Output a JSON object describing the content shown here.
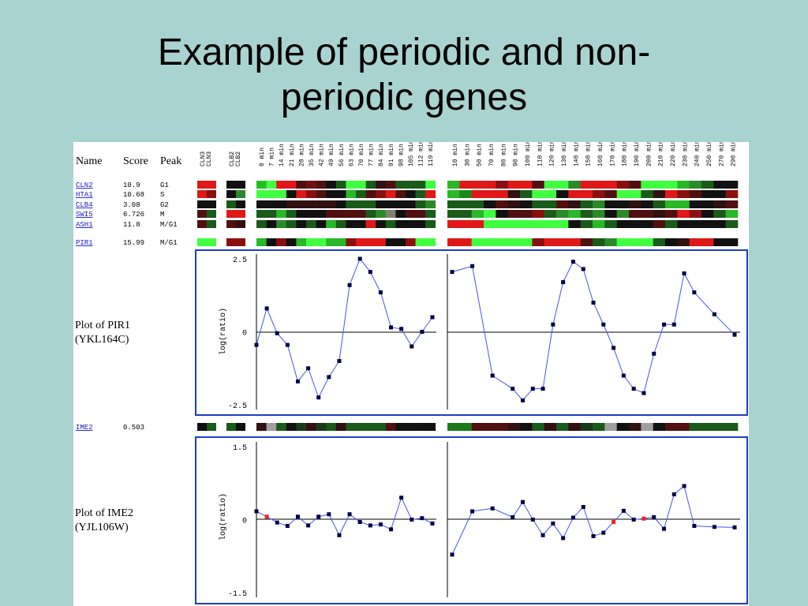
{
  "slide": {
    "title_line1": "Example of periodic and non-",
    "title_line2": "periodic genes"
  },
  "table_header": {
    "name": "Name",
    "score": "Score",
    "peak": "Peak"
  },
  "ref_columns": {
    "cln": [
      "CLN3",
      "CLN3"
    ],
    "clb": [
      "CLB2",
      "CLB2"
    ]
  },
  "timepoints_a": [
    "0 min",
    "7 min",
    "14 min",
    "21 min",
    "28 min",
    "35 min",
    "42 min",
    "49 min",
    "56 min",
    "63 min",
    "70 min",
    "77 min",
    "84 min",
    "91 min",
    "98 min",
    "105 min",
    "112 min",
    "119 min"
  ],
  "timepoints_b": [
    "10 min",
    "30 min",
    "50 min",
    "70 min",
    "80 min",
    "90 min",
    "100 min",
    "110 min",
    "120 min",
    "130 min",
    "140 min",
    "150 min",
    "160 min",
    "170 min",
    "180 min",
    "190 min",
    "200 min",
    "210 min",
    "220 min",
    "230 min",
    "240 min",
    "250 min",
    "270 min",
    "290 min"
  ],
  "genes": [
    {
      "name": "CLN2",
      "score": "10.9",
      "peak": "G1",
      "ref": [
        "#e01818",
        "#e01818",
        "#111111",
        "#111111"
      ],
      "a": [
        "#20c020",
        "#40ff40",
        "#e01818",
        "#e01818",
        "#501010",
        "#701010",
        "#501010",
        "#111111",
        "#1a5a1a",
        "#40ff40",
        "#40ff40",
        "#1a5a1a",
        "#301010",
        "#501010",
        "#1a5a1a",
        "#1a5a1a",
        "#1a5a1a",
        "#40ff40"
      ],
      "b": [
        "#28b828",
        "#e01818",
        "#e01818",
        "#e01818",
        "#8a1010",
        "#e01818",
        "#e01818",
        "#501010",
        "#40ff40",
        "#40ff40",
        "#2a8a2a",
        "#e01818",
        "#e01818",
        "#e01818",
        "#8a1010",
        "#501010",
        "#40ff40",
        "#40ff40",
        "#40ff40",
        "#28b828",
        "#2a8a2a",
        "#1a5a1a",
        "#111111",
        "#111111"
      ]
    },
    {
      "name": "HTA1",
      "score": "10.68",
      "peak": "S",
      "ref": [
        "#e01818",
        "#8a1010",
        "#111111",
        "#2a8a2a"
      ],
      "a": [
        "#40ff40",
        "#40ff40",
        "#40ff40",
        "#111111",
        "#e01818",
        "#8a1010",
        "#501010",
        "#111111",
        "#111111",
        "#28b828",
        "#1a5a1a",
        "#501010",
        "#8a1010",
        "#e01818",
        "#501010",
        "#111111",
        "#1a5a1a",
        "#e01818"
      ],
      "b": [
        "#28b828",
        "#1a8a1a",
        "#e01818",
        "#e01818",
        "#e01818",
        "#301010",
        "#1a5a1a",
        "#40ff40",
        "#40ff40",
        "#111111",
        "#e01818",
        "#e01818",
        "#8a1010",
        "#501010",
        "#40ff40",
        "#40ff40",
        "#1a5a1a",
        "#301010",
        "#e01818",
        "#8a1010",
        "#501010",
        "#111111",
        "#111111",
        "#8a1010"
      ]
    },
    {
      "name": "CLB4",
      "score": "3.08",
      "peak": "G2",
      "ref": [
        "#111111",
        "#111111",
        "#1a5a1a",
        "#111111"
      ],
      "a": [
        "#111111",
        "#111111",
        "#111111",
        "#301010",
        "#301010",
        "#301010",
        "#301010",
        "#301010",
        "#111111",
        "#1a5a1a",
        "#1a5a1a",
        "#1a5a1a",
        "#111111",
        "#111111",
        "#111111",
        "#111111",
        "#1a5a1a",
        "#2a8a2a"
      ],
      "b": [
        "#1a5a1a",
        "#1a5a1a",
        "#1a5a1a",
        "#111111",
        "#501010",
        "#301010",
        "#111111",
        "#1a5a1a",
        "#1a5a1a",
        "#501010",
        "#301010",
        "#1a5a1a",
        "#2a8a2a",
        "#111111",
        "#111111",
        "#301010",
        "#111111",
        "#1a5a1a",
        "#28b828",
        "#28b828",
        "#111111",
        "#111111",
        "#301010",
        "#501010"
      ]
    },
    {
      "name": "SWI5",
      "score": "6.726",
      "peak": "M",
      "ref": [
        "#501010",
        "#1a5a1a",
        "#e01818",
        "#e01818"
      ],
      "a": [
        "#1a5a1a",
        "#1a5a1a",
        "#28b828",
        "#1a5a1a",
        "#111111",
        "#111111",
        "#111111",
        "#501010",
        "#501010",
        "#501010",
        "#501010",
        "#1a5a1a",
        "#2a8a2a",
        "#808070",
        "#111111",
        "#501010",
        "#501010",
        "#1a5a1a"
      ],
      "b": [
        "#1a5a1a",
        "#1a5a1a",
        "#28b828",
        "#40ff40",
        "#111111",
        "#501010",
        "#501010",
        "#8a1010",
        "#1a5a1a",
        "#2a8a2a",
        "#28b828",
        "#1a5a1a",
        "#2a8a2a",
        "#111111",
        "#2a8a2a",
        "#501010",
        "#501010",
        "#301010",
        "#501010",
        "#e01818",
        "#8a1010",
        "#111111",
        "#1a5a1a",
        "#28b828"
      ]
    },
    {
      "name": "ASH1",
      "score": "11.8",
      "peak": "M/G1",
      "ref": [
        "#501010",
        "#1a5a1a",
        "#501010",
        "#301010"
      ],
      "a": [
        "#1a5a1a",
        "#111111",
        "#2a8a2a",
        "#1a5a1a",
        "#111111",
        "#1a5a1a",
        "#111111",
        "#28b828",
        "#1a5a1a",
        "#111111",
        "#111111",
        "#e01818",
        "#111111",
        "#1a5a1a",
        "#111111",
        "#111111",
        "#111111",
        "#1a5a1a"
      ],
      "b": [
        "#e01818",
        "#e01818",
        "#e01818",
        "#40ff40",
        "#40ff40",
        "#40ff40",
        "#40ff40",
        "#40ff40",
        "#40ff40",
        "#40ff40",
        "#111111",
        "#1a5a1a",
        "#28b828",
        "#1a5a1a",
        "#111111",
        "#111111",
        "#111111",
        "#501010",
        "#1a5a1a",
        "#111111",
        "#111111",
        "#111111",
        "#111111",
        "#1a5a1a"
      ]
    },
    {
      "name": "PIR1",
      "score": "15.99",
      "peak": "M/G1",
      "ref": [
        "#40ff40",
        "#40ff40",
        "#8a1010",
        "#8a1010"
      ],
      "a": [
        "#28b828",
        "#111111",
        "#8a1010",
        "#111111",
        "#28b828",
        "#40ff40",
        "#40ff40",
        "#28b828",
        "#28b828",
        "#8a1010",
        "#e01818",
        "#e01818",
        "#e01818",
        "#111111",
        "#111111",
        "#8a1010",
        "#40ff40",
        "#40ff40"
      ],
      "b": [
        "#e01818",
        "#e01818",
        "#40ff40",
        "#40ff40",
        "#40ff40",
        "#40ff40",
        "#40ff40",
        "#8a1010",
        "#e01818",
        "#e01818",
        "#e01818",
        "#501010",
        "#1a5a1a",
        "#2a8a2a",
        "#40ff40",
        "#40ff40",
        "#40ff40",
        "#1a5a1a",
        "#111111",
        "#301010",
        "#e01818",
        "#e01818",
        "#111111",
        "#111111"
      ]
    },
    {
      "name": "IME2",
      "score": "0.503",
      "peak": "",
      "ref": [
        "#111111",
        "#1a5a1a",
        "#1a5a1a",
        "#111111"
      ],
      "a": [
        "#301010",
        "#a0a0a0",
        "#1a5a1a",
        "#111111",
        "#1a3a1a",
        "#301010",
        "#1a3a1a",
        "#1a5a1a",
        "#301010",
        "#1a5a1a",
        "#1a5a1a",
        "#1a5a1a",
        "#1a5a1a",
        "#501010",
        "#111111",
        "#111111",
        "#111111",
        "#111111"
      ],
      "b": [
        "#1a7a1a",
        "#1a7a1a",
        "#501010",
        "#501010",
        "#501010",
        "#301010",
        "#111111",
        "#1a5a1a",
        "#301010",
        "#1a5a1a",
        "#301010",
        "#1a3a1a",
        "#1a5a1a",
        "#a0a0a0",
        "#111111",
        "#301010",
        "#a0a0a0",
        "#111111",
        "#501010",
        "#501010",
        "#1a5a1a",
        "#1a5a1a",
        "#1a5a1a",
        "#1a5a1a"
      ]
    }
  ],
  "chart_data": [
    {
      "type": "line",
      "title": "Plot of PIR1",
      "subtitle": "(YKL164C)",
      "ylabel": "log(ratio)",
      "ylim": [
        -2.5,
        2.5
      ],
      "yticks": [
        "2.5",
        "0",
        "-2.5"
      ],
      "grid": false,
      "series": [
        {
          "x": [
            0,
            7,
            14,
            21,
            28,
            35,
            42,
            49,
            56,
            63,
            70,
            77,
            84,
            91,
            98,
            105,
            112,
            119
          ],
          "values": [
            -0.45,
            0.8,
            -0.05,
            -0.45,
            -1.7,
            -1.25,
            -2.25,
            -1.55,
            -1.0,
            1.6,
            2.5,
            2.05,
            1.35,
            0.15,
            0.1,
            -0.5,
            0.0,
            0.5
          ]
        },
        {
          "x": [
            10,
            30,
            50,
            70,
            80,
            90,
            100,
            110,
            120,
            130,
            140,
            150,
            160,
            170,
            180,
            190,
            200,
            210,
            220,
            230,
            240,
            250,
            270,
            290
          ],
          "values": [
            2.05,
            2.25,
            -1.5,
            -1.95,
            -2.35,
            -1.95,
            -1.95,
            0.25,
            1.7,
            2.4,
            2.15,
            1.0,
            0.25,
            -0.55,
            -1.5,
            -1.95,
            -2.1,
            -0.75,
            0.25,
            0.25,
            2.0,
            1.35,
            0.6,
            -0.1
          ]
        }
      ]
    },
    {
      "type": "line",
      "title": "Plot of IME2",
      "subtitle": "(YJL106W)",
      "ylabel": "log(ratio)",
      "ylim": [
        -1.5,
        1.5
      ],
      "yticks": [
        "1.5",
        "0",
        "-1.5"
      ],
      "grid": false,
      "series": [
        {
          "x": [
            0,
            7,
            14,
            21,
            28,
            35,
            42,
            49,
            56,
            63,
            70,
            77,
            84,
            91,
            98,
            105,
            112,
            119
          ],
          "values": [
            0.17,
            0.06,
            -0.06,
            -0.13,
            0.06,
            -0.12,
            0.06,
            0.11,
            -0.32,
            0.11,
            -0.05,
            -0.12,
            -0.1,
            -0.2,
            0.45,
            0.0,
            0.03,
            -0.08
          ],
          "missing": [
            1
          ]
        },
        {
          "x": [
            10,
            30,
            50,
            70,
            80,
            90,
            100,
            110,
            120,
            130,
            140,
            150,
            160,
            170,
            180,
            190,
            200,
            210,
            220,
            230,
            240,
            250,
            270,
            290
          ],
          "values": [
            -0.72,
            0.17,
            0.23,
            0.05,
            0.36,
            0.0,
            -0.32,
            -0.08,
            -0.38,
            0.04,
            0.26,
            -0.34,
            -0.27,
            -0.05,
            0.18,
            0.0,
            0.02,
            0.05,
            -0.19,
            0.52,
            0.69,
            -0.13,
            -0.15,
            -0.16
          ],
          "missing": [
            13,
            16
          ]
        }
      ]
    }
  ],
  "colors": {
    "frame": "#1d3fc0",
    "line": "#4455ee",
    "marker": "#000044",
    "missing_marker": "#ee2222",
    "link": "#1a1acc",
    "background": "#a9d3d1"
  }
}
